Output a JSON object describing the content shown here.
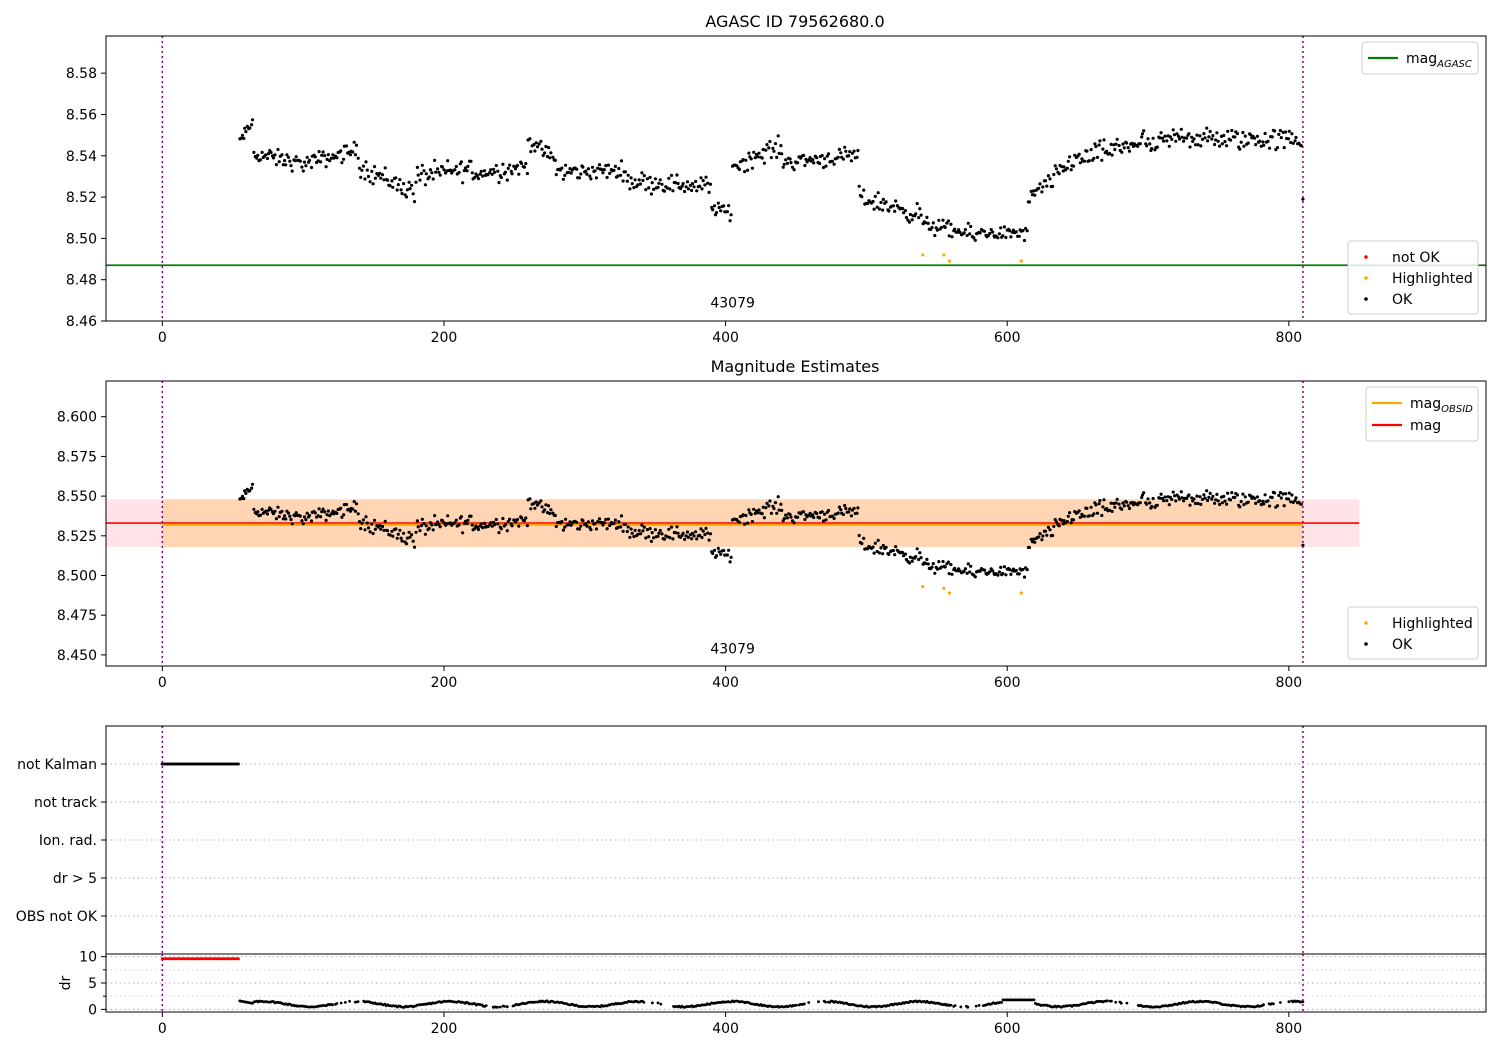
{
  "chart_data": [
    {
      "type": "scatter",
      "title": "AGASC ID 79562680.0",
      "xlim": [
        -40,
        940
      ],
      "ylim": [
        8.46,
        8.598
      ],
      "xticks": [
        0,
        200,
        400,
        600,
        800
      ],
      "yticks": [
        8.46,
        8.48,
        8.5,
        8.52,
        8.54,
        8.56,
        8.58
      ],
      "ytick_decimals": 2,
      "obsid_label": "43079",
      "obsid_label_x": 405,
      "obsid_label_y": 8.4665,
      "vlines": [
        0,
        810
      ],
      "hlines": [
        {
          "name": "mag",
          "name_sub": "AGASC",
          "value": 8.487,
          "color": "#008000"
        }
      ],
      "line_legend": [
        {
          "name": "mag",
          "sub": "AGASC",
          "color": "#008000"
        }
      ],
      "marker_legend": [
        {
          "name": "not OK",
          "color": "#ff0000"
        },
        {
          "name": "Highlighted",
          "color": "#ffa500"
        },
        {
          "name": "OK",
          "color": "#000000"
        }
      ],
      "highlighted": [
        [
          540,
          8.492
        ],
        [
          555,
          8.492
        ],
        [
          559,
          8.489
        ],
        [
          610,
          8.489
        ]
      ],
      "extra_ok": [
        [
          810,
          8.519
        ]
      ],
      "segments": [
        {
          "x0": 55,
          "x1": 65,
          "v0": 8.547,
          "v1": 8.557,
          "noise": 0.004
        },
        {
          "x0": 65,
          "x1": 100,
          "v0": 8.541,
          "v1": 8.536,
          "noise": 0.006
        },
        {
          "x0": 100,
          "x1": 140,
          "v0": 8.536,
          "v1": 8.543,
          "noise": 0.006
        },
        {
          "x0": 140,
          "x1": 180,
          "v0": 8.535,
          "v1": 8.522,
          "noise": 0.008
        },
        {
          "x0": 180,
          "x1": 220,
          "v0": 8.53,
          "v1": 8.534,
          "noise": 0.008
        },
        {
          "x0": 220,
          "x1": 260,
          "v0": 8.531,
          "v1": 8.535,
          "noise": 0.007
        },
        {
          "x0": 260,
          "x1": 280,
          "v0": 8.547,
          "v1": 8.538,
          "noise": 0.006
        },
        {
          "x0": 280,
          "x1": 330,
          "v0": 8.532,
          "v1": 8.533,
          "noise": 0.006
        },
        {
          "x0": 330,
          "x1": 390,
          "v0": 8.528,
          "v1": 8.525,
          "noise": 0.007
        },
        {
          "x0": 390,
          "x1": 405,
          "v0": 8.515,
          "v1": 8.512,
          "noise": 0.005
        },
        {
          "x0": 405,
          "x1": 440,
          "v0": 8.535,
          "v1": 8.545,
          "noise": 0.007
        },
        {
          "x0": 440,
          "x1": 495,
          "v0": 8.537,
          "v1": 8.54,
          "noise": 0.006
        },
        {
          "x0": 495,
          "x1": 540,
          "v0": 8.52,
          "v1": 8.511,
          "noise": 0.007
        },
        {
          "x0": 540,
          "x1": 580,
          "v0": 8.507,
          "v1": 8.501,
          "noise": 0.006
        },
        {
          "x0": 580,
          "x1": 615,
          "v0": 8.503,
          "v1": 8.502,
          "noise": 0.005
        },
        {
          "x0": 615,
          "x1": 650,
          "v0": 8.518,
          "v1": 8.54,
          "noise": 0.007
        },
        {
          "x0": 650,
          "x1": 700,
          "v0": 8.538,
          "v1": 8.548,
          "noise": 0.008
        },
        {
          "x0": 700,
          "x1": 730,
          "v0": 8.543,
          "v1": 8.552,
          "noise": 0.008
        },
        {
          "x0": 730,
          "x1": 810,
          "v0": 8.548,
          "v1": 8.548,
          "noise": 0.008
        }
      ]
    },
    {
      "type": "scatter",
      "title": "Magnitude Estimates",
      "xlim": [
        -40,
        940
      ],
      "ylim": [
        8.443,
        8.6225
      ],
      "xticks": [
        0,
        200,
        400,
        600,
        800
      ],
      "yticks": [
        8.45,
        8.475,
        8.5,
        8.525,
        8.55,
        8.575,
        8.6
      ],
      "ytick_decimals": 3,
      "obsid_label": "43079",
      "obsid_label_x": 405,
      "obsid_label_y": 8.451,
      "vlines": [
        0,
        810
      ],
      "bands": [
        {
          "x0": -40,
          "x1": 850,
          "y0": 8.518,
          "y1": 8.548,
          "color": "#ffb6c1",
          "opacity": 0.38
        },
        {
          "x0": 0,
          "x1": 810,
          "y0": 8.518,
          "y1": 8.548,
          "color": "#ffa500",
          "opacity": 0.22
        }
      ],
      "hlines": [
        {
          "name": "mag",
          "value": 8.533,
          "color": "#ff0000",
          "x0": -40,
          "x1": 850,
          "width": 1.6
        },
        {
          "name": "mag",
          "name_sub": "OBSID",
          "value": 8.532,
          "color": "#ffa500",
          "x0": 0,
          "x1": 810,
          "width": 2.2
        }
      ],
      "line_legend": [
        {
          "name": "mag",
          "sub": "OBSID",
          "color": "#ffa500"
        },
        {
          "name": "mag",
          "sub": "",
          "color": "#ff0000"
        }
      ],
      "marker_legend": [
        {
          "name": "Highlighted",
          "color": "#ffa500"
        },
        {
          "name": "OK",
          "color": "#000000"
        }
      ],
      "highlighted": [
        [
          540,
          8.493
        ],
        [
          555,
          8.492
        ],
        [
          559,
          8.489
        ],
        [
          610,
          8.489
        ]
      ],
      "extra_ok": [
        [
          810,
          8.519
        ]
      ],
      "reuse_segments_from": 0
    },
    {
      "type": "scatter",
      "title": "",
      "xlim": [
        -40,
        940
      ],
      "categories": [
        "not Kalman",
        "not track",
        "Ion. rad.",
        "dr > 5",
        "OBS not OK"
      ],
      "flag_points": {
        "category": "not Kalman",
        "x0": 0,
        "x1": 55,
        "step": 1.2
      },
      "vlines": [
        0,
        810
      ]
    },
    {
      "type": "scatter",
      "title": "",
      "ylabel": "dr",
      "xlim": [
        -40,
        940
      ],
      "ylim": [
        -0.5,
        10.5
      ],
      "xticks": [
        0,
        200,
        400,
        600,
        800
      ],
      "yticks": [
        0,
        5,
        10
      ],
      "minor_yticks": [
        2.5,
        7.5
      ],
      "vlines": [
        0,
        810
      ],
      "notok_points": {
        "x0": 0,
        "x1": 55,
        "value": 9.6,
        "step": 1.2
      },
      "dr_range": {
        "x0": 55,
        "x1": 810,
        "base": 1.0
      }
    }
  ]
}
